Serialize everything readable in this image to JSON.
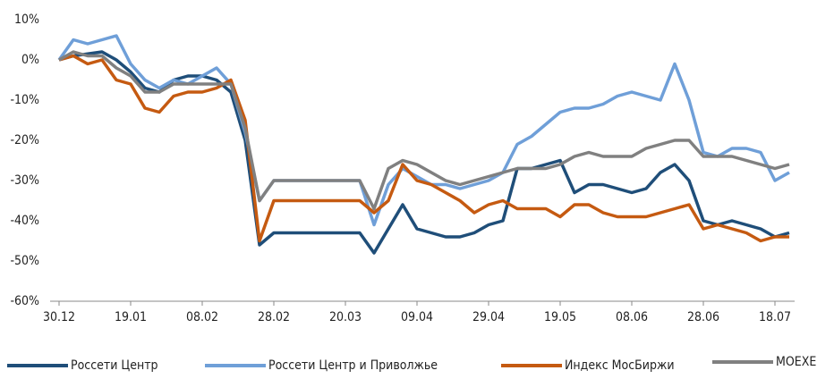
{
  "chart_data": {
    "type": "line",
    "categories": [
      "30.12",
      null,
      null,
      null,
      null,
      "19.01",
      null,
      null,
      null,
      null,
      "08.02",
      null,
      null,
      null,
      null,
      "28.02",
      null,
      null,
      null,
      null,
      "20.03",
      null,
      null,
      null,
      null,
      "09.04",
      null,
      null,
      null,
      null,
      "29.04",
      null,
      null,
      null,
      null,
      "19.05",
      null,
      null,
      null,
      null,
      "08.06",
      null,
      null,
      null,
      null,
      "28.06",
      null,
      null,
      null,
      null,
      "18.07",
      null
    ],
    "ylim": [
      -60,
      10
    ],
    "yticks": [
      {
        "value": 10,
        "label": "10%"
      },
      {
        "value": 0,
        "label": "0%"
      },
      {
        "value": -10,
        "label": "-10%"
      },
      {
        "value": -20,
        "label": "-20%"
      },
      {
        "value": -30,
        "label": "-30%"
      },
      {
        "value": -40,
        "label": "-40%"
      },
      {
        "value": -50,
        "label": "-50%"
      },
      {
        "value": -60,
        "label": "-60%"
      }
    ],
    "grid": false,
    "legend": "bottom",
    "series": [
      {
        "name": "Россети Центр",
        "color": "#1f4e79",
        "values": [
          0,
          1,
          1.5,
          2,
          0,
          -3,
          -7,
          -8,
          -5,
          -4,
          -4,
          -5,
          -8,
          -20,
          -46,
          -43,
          -43,
          -43,
          -43,
          -43,
          -43,
          -43,
          -48,
          -42,
          -36,
          -42,
          -43,
          -44,
          -44,
          -43,
          -41,
          -40,
          -27,
          -27,
          -26,
          -25,
          -33,
          -31,
          -31,
          -32,
          -33,
          -32,
          -28,
          -26,
          -30,
          -40,
          -41,
          -40,
          -41,
          -42,
          -44,
          -43
        ]
      },
      {
        "name": "Россети Центр и Приволжье",
        "color": "#6f9fd8",
        "values": [
          0,
          5,
          4,
          5,
          6,
          -1,
          -5,
          -7,
          -5,
          -6,
          -4,
          -2,
          -6,
          -18,
          -35,
          -30,
          -30,
          -30,
          -30,
          -30,
          -30,
          -30,
          -41,
          -31,
          -27,
          -29,
          -31,
          -31,
          -32,
          -31,
          -30,
          -28,
          -21,
          -19,
          -16,
          -13,
          -12,
          -12,
          -11,
          -9,
          -8,
          -9,
          -10,
          -1,
          -10,
          -23,
          -24,
          -22,
          -22,
          -23,
          -30,
          -28
        ]
      },
      {
        "name": "Индекс МосБиржи",
        "color": "#c55a11",
        "values": [
          0,
          1,
          -1,
          0,
          -5,
          -6,
          -12,
          -13,
          -9,
          -8,
          -8,
          -7,
          -5,
          -15,
          -45,
          -35,
          -35,
          -35,
          -35,
          -35,
          -35,
          -35,
          -38,
          -35,
          -26,
          -30,
          -31,
          -33,
          -35,
          -38,
          -36,
          -35,
          -37,
          -37,
          -37,
          -39,
          -36,
          -36,
          -38,
          -39,
          -39,
          -39,
          -38,
          -37,
          -36,
          -42,
          -41,
          -42,
          -43,
          -45,
          -44,
          -44
        ]
      },
      {
        "name": "MOEXEU",
        "color": "#808080",
        "values": [
          0,
          2,
          1,
          1,
          -2,
          -4,
          -8,
          -8,
          -6,
          -6,
          -6,
          -6,
          -6,
          -17,
          -35,
          -30,
          -30,
          -30,
          -30,
          -30,
          -30,
          -30,
          -37,
          -27,
          -25,
          -26,
          -28,
          -30,
          -31,
          -30,
          -29,
          -28,
          -27,
          -27,
          -27,
          -26,
          -24,
          -23,
          -24,
          -24,
          -24,
          -22,
          -21,
          -20,
          -20,
          -24,
          -24,
          -24,
          -25,
          -26,
          -27,
          -26
        ]
      }
    ]
  }
}
